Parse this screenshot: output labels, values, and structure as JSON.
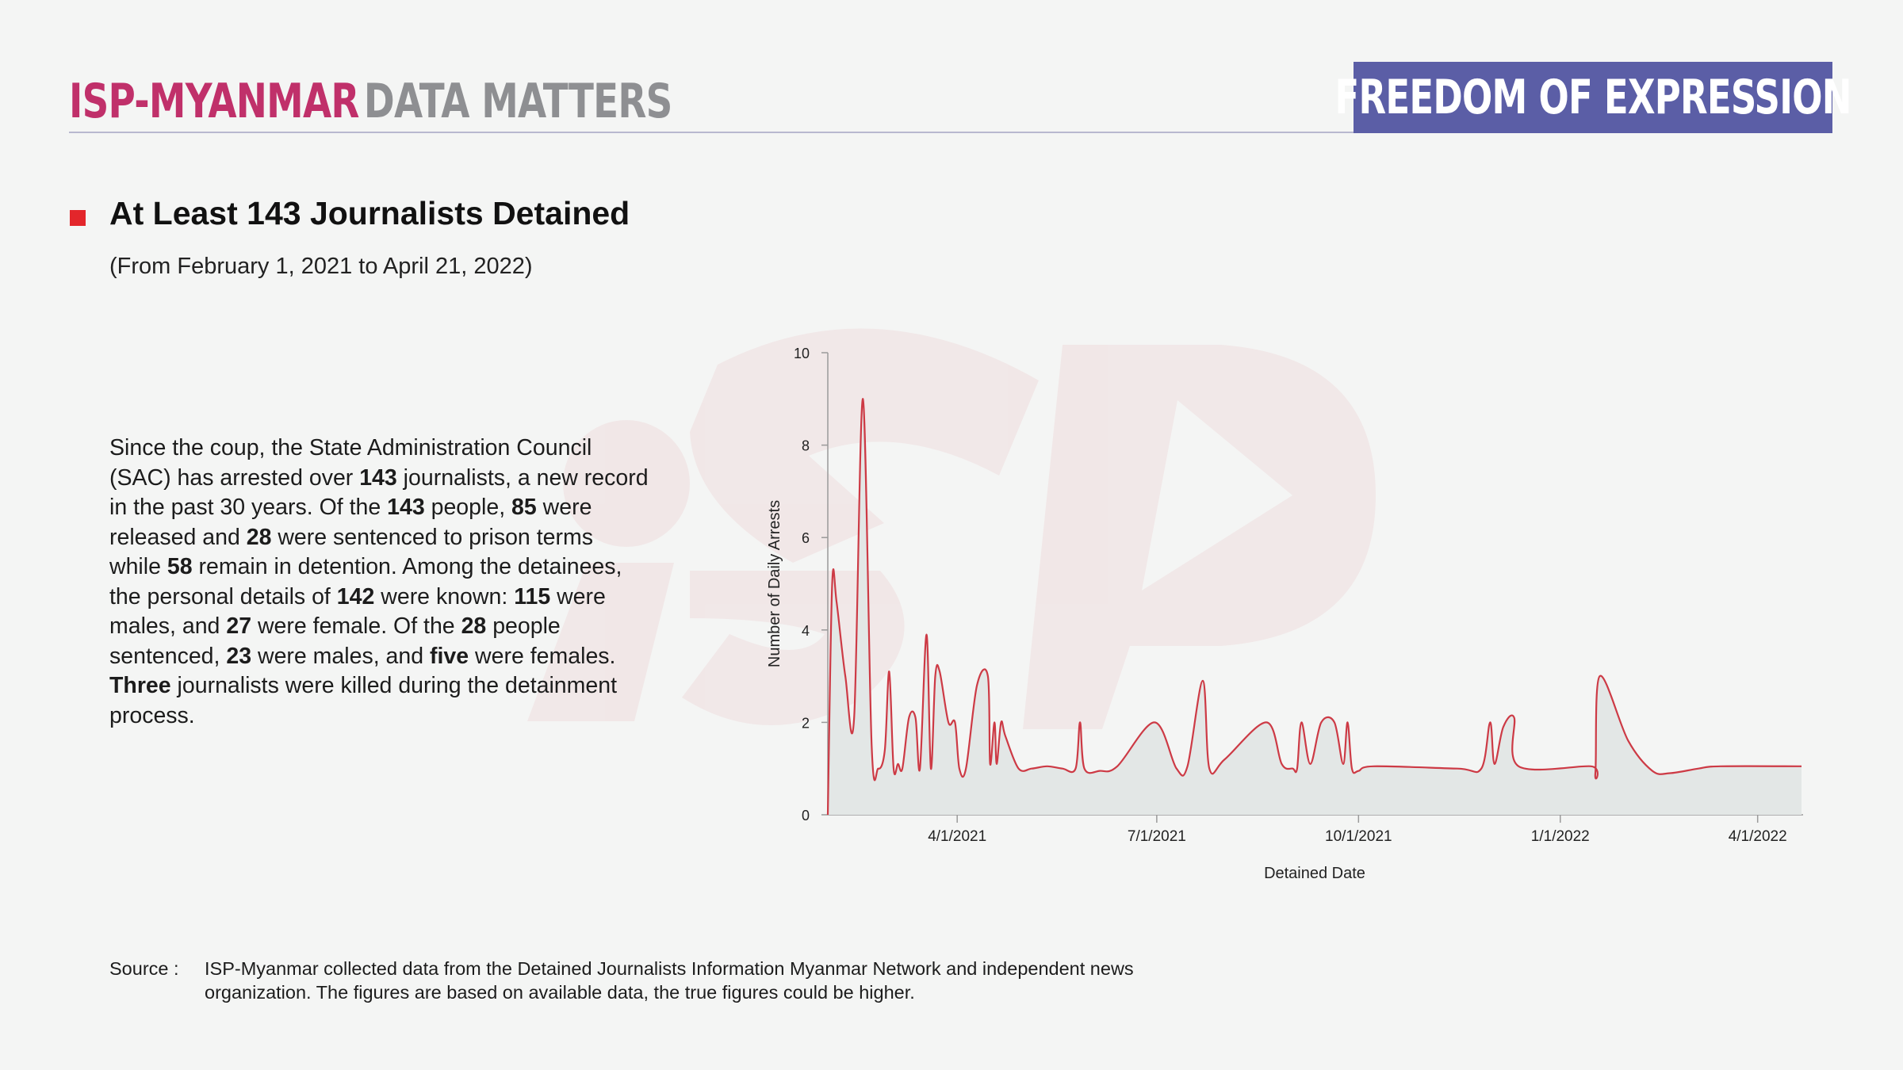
{
  "header": {
    "brand_primary": "ISP-MYANMAR",
    "brand_secondary": "DATA MATTERS",
    "topic": "FREEDOM OF EXPRESSION",
    "brand_color": "#c0306a",
    "topic_color": "#5b5ea6"
  },
  "title": "At Least 143 Journalists Detained",
  "subtitle": "(From February 1, 2021 to April 21, 2022)",
  "summary": [
    {
      "t": "Since the coup, the State Administration Council (SAC) has arrested over "
    },
    {
      "t": "143",
      "b": true
    },
    {
      "t": " journalists, a new record in the past 30 years.  Of the "
    },
    {
      "t": "143",
      "b": true
    },
    {
      "t": " people, "
    },
    {
      "t": "85",
      "b": true
    },
    {
      "t": " were released and "
    },
    {
      "t": "28",
      "b": true
    },
    {
      "t": " were sentenced to prison terms while "
    },
    {
      "t": "58",
      "b": true
    },
    {
      "t": " remain in detention. Among the detainees, the personal details of "
    },
    {
      "t": "142",
      "b": true
    },
    {
      "t": " were known: "
    },
    {
      "t": "115",
      "b": true
    },
    {
      "t": " were males, and "
    },
    {
      "t": "27",
      "b": true
    },
    {
      "t": " were female. Of the "
    },
    {
      "t": "28",
      "b": true
    },
    {
      "t": " people sentenced, "
    },
    {
      "t": "23",
      "b": true
    },
    {
      "t": " were males, and "
    },
    {
      "t": "five",
      "b": true
    },
    {
      "t": " were females. "
    },
    {
      "t": "Three",
      "b": true
    },
    {
      "t": " journalists were killed during the detainment process."
    }
  ],
  "source": {
    "label": "Source :",
    "text": "ISP-Myanmar collected data from the Detained Journalists Information Myanmar Network and independent news organization. The figures are based on available data, the true figures could be higher."
  },
  "chart_data": {
    "type": "area",
    "xlabel": "Detained Date",
    "ylabel": "Number of Daily Arrests",
    "x_range": [
      "2021-02-01",
      "2022-04-21"
    ],
    "ylim": [
      0,
      10
    ],
    "yticks": [
      0,
      2,
      4,
      6,
      8,
      10
    ],
    "xticks": [
      {
        "date": "2021-04-01",
        "label": "4/1/2021"
      },
      {
        "date": "2021-07-01",
        "label": "7/1/2021"
      },
      {
        "date": "2021-10-01",
        "label": "10/1/2021"
      },
      {
        "date": "2022-01-01",
        "label": "1/1/2022"
      },
      {
        "date": "2022-04-01",
        "label": "4/1/2022"
      }
    ],
    "line_color": "#cd3a45",
    "fill_color": "#e3e7e6",
    "points": [
      [
        "2021-02-01",
        0
      ],
      [
        "2021-02-03",
        5
      ],
      [
        "2021-02-05",
        4.6
      ],
      [
        "2021-02-09",
        3
      ],
      [
        "2021-02-13",
        2.1
      ],
      [
        "2021-02-17",
        9
      ],
      [
        "2021-02-21",
        1.5
      ],
      [
        "2021-02-24",
        1
      ],
      [
        "2021-02-27",
        1.4
      ],
      [
        "2021-03-01",
        3.1
      ],
      [
        "2021-03-03",
        1
      ],
      [
        "2021-03-05",
        1.1
      ],
      [
        "2021-03-07",
        1
      ],
      [
        "2021-03-10",
        2.1
      ],
      [
        "2021-03-13",
        2.1
      ],
      [
        "2021-03-15",
        1
      ],
      [
        "2021-03-18",
        3.9
      ],
      [
        "2021-03-20",
        1
      ],
      [
        "2021-03-22",
        3
      ],
      [
        "2021-03-24",
        3.1
      ],
      [
        "2021-03-28",
        2
      ],
      [
        "2021-03-31",
        2
      ],
      [
        "2021-04-02",
        1
      ],
      [
        "2021-04-05",
        1
      ],
      [
        "2021-04-10",
        2.8
      ],
      [
        "2021-04-15",
        3
      ],
      [
        "2021-04-16",
        1.1
      ],
      [
        "2021-04-18",
        2
      ],
      [
        "2021-04-19",
        1.1
      ],
      [
        "2021-04-21",
        2
      ],
      [
        "2021-04-23",
        1.7
      ],
      [
        "2021-04-29",
        1
      ],
      [
        "2021-05-05",
        1
      ],
      [
        "2021-05-12",
        1.05
      ],
      [
        "2021-05-19",
        1
      ],
      [
        "2021-05-25",
        1
      ],
      [
        "2021-05-27",
        2
      ],
      [
        "2021-05-29",
        1
      ],
      [
        "2021-06-05",
        0.95
      ],
      [
        "2021-06-13",
        1.05
      ],
      [
        "2021-06-30",
        2
      ],
      [
        "2021-07-10",
        1
      ],
      [
        "2021-07-15",
        1.05
      ],
      [
        "2021-07-22",
        2.9
      ],
      [
        "2021-07-25",
        1
      ],
      [
        "2021-08-01",
        1.2
      ],
      [
        "2021-08-20",
        2
      ],
      [
        "2021-08-27",
        1.1
      ],
      [
        "2021-09-01",
        1
      ],
      [
        "2021-09-03",
        1
      ],
      [
        "2021-09-05",
        2
      ],
      [
        "2021-09-09",
        1.1
      ],
      [
        "2021-09-14",
        2
      ],
      [
        "2021-09-20",
        2
      ],
      [
        "2021-09-24",
        1.1
      ],
      [
        "2021-09-26",
        2
      ],
      [
        "2021-09-28",
        1
      ],
      [
        "2021-10-01",
        0.95
      ],
      [
        "2021-10-08",
        1.05
      ],
      [
        "2021-11-15",
        1
      ],
      [
        "2021-11-26",
        1
      ],
      [
        "2021-11-30",
        2
      ],
      [
        "2021-12-02",
        1.1
      ],
      [
        "2021-12-06",
        1.9
      ],
      [
        "2021-12-11",
        2.1
      ],
      [
        "2021-12-13",
        1.05
      ],
      [
        "2022-01-15",
        1.05
      ],
      [
        "2022-01-17",
        0.9
      ],
      [
        "2022-01-19",
        3
      ],
      [
        "2022-02-01",
        1.6
      ],
      [
        "2022-02-12",
        0.95
      ],
      [
        "2022-02-20",
        0.9
      ],
      [
        "2022-03-05",
        1
      ],
      [
        "2022-03-15",
        1.05
      ],
      [
        "2022-04-21",
        1.05
      ]
    ]
  }
}
